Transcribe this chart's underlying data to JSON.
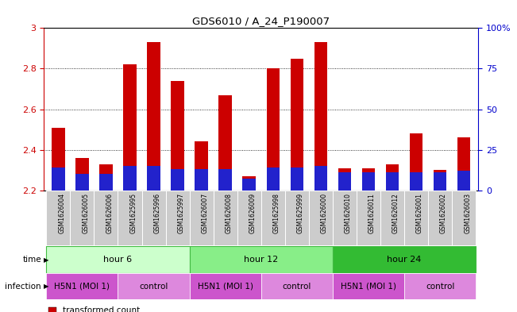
{
  "title": "GDS6010 / A_24_P190007",
  "samples": [
    "GSM1626004",
    "GSM1626005",
    "GSM1626006",
    "GSM1625995",
    "GSM1625996",
    "GSM1625997",
    "GSM1626007",
    "GSM1626008",
    "GSM1626009",
    "GSM1625998",
    "GSM1625999",
    "GSM1626000",
    "GSM1626010",
    "GSM1626011",
    "GSM1626012",
    "GSM1626001",
    "GSM1626002",
    "GSM1626003"
  ],
  "transformed_count": [
    2.51,
    2.36,
    2.33,
    2.82,
    2.93,
    2.74,
    2.44,
    2.67,
    2.27,
    2.8,
    2.85,
    2.93,
    2.31,
    2.31,
    2.33,
    2.48,
    2.3,
    2.46
  ],
  "percentile_rank_pct": [
    14,
    10,
    10,
    15,
    15,
    13,
    13,
    13,
    7,
    14,
    14,
    15,
    11,
    11,
    11,
    11,
    11,
    12
  ],
  "bar_base": 2.2,
  "ylim_left": [
    2.2,
    3.0
  ],
  "ylim_right": [
    0,
    100
  ],
  "yticks_left": [
    2.2,
    2.4,
    2.6,
    2.8,
    3.0
  ],
  "ytick_labels_left": [
    "2.2",
    "2.4",
    "2.6",
    "2.8",
    "3"
  ],
  "yticks_right": [
    0,
    25,
    50,
    75,
    100
  ],
  "ytick_labels_right": [
    "0",
    "25",
    "50",
    "75",
    "100%"
  ],
  "grid_values": [
    2.4,
    2.6,
    2.8
  ],
  "bar_color_red": "#cc0000",
  "bar_color_blue": "#2222cc",
  "time_groups": [
    {
      "label": "hour 6",
      "start": 0,
      "end": 6,
      "color": "#ccffcc",
      "border_color": "#44bb44"
    },
    {
      "label": "hour 12",
      "start": 6,
      "end": 12,
      "color": "#88ee88",
      "border_color": "#44bb44"
    },
    {
      "label": "hour 24",
      "start": 12,
      "end": 18,
      "color": "#33bb33",
      "border_color": "#44bb44"
    }
  ],
  "infection_groups": [
    {
      "label": "H5N1 (MOI 1)",
      "start": 0,
      "end": 3,
      "color": "#cc55cc"
    },
    {
      "label": "control",
      "start": 3,
      "end": 6,
      "color": "#dd88dd"
    },
    {
      "label": "H5N1 (MOI 1)",
      "start": 6,
      "end": 9,
      "color": "#cc55cc"
    },
    {
      "label": "control",
      "start": 9,
      "end": 12,
      "color": "#dd88dd"
    },
    {
      "label": "H5N1 (MOI 1)",
      "start": 12,
      "end": 15,
      "color": "#cc55cc"
    },
    {
      "label": "control",
      "start": 15,
      "end": 18,
      "color": "#dd88dd"
    }
  ],
  "axis_color_left": "#cc0000",
  "axis_color_right": "#0000cc",
  "sample_bg_color": "#cccccc",
  "sample_border_color": "#aaaaaa"
}
